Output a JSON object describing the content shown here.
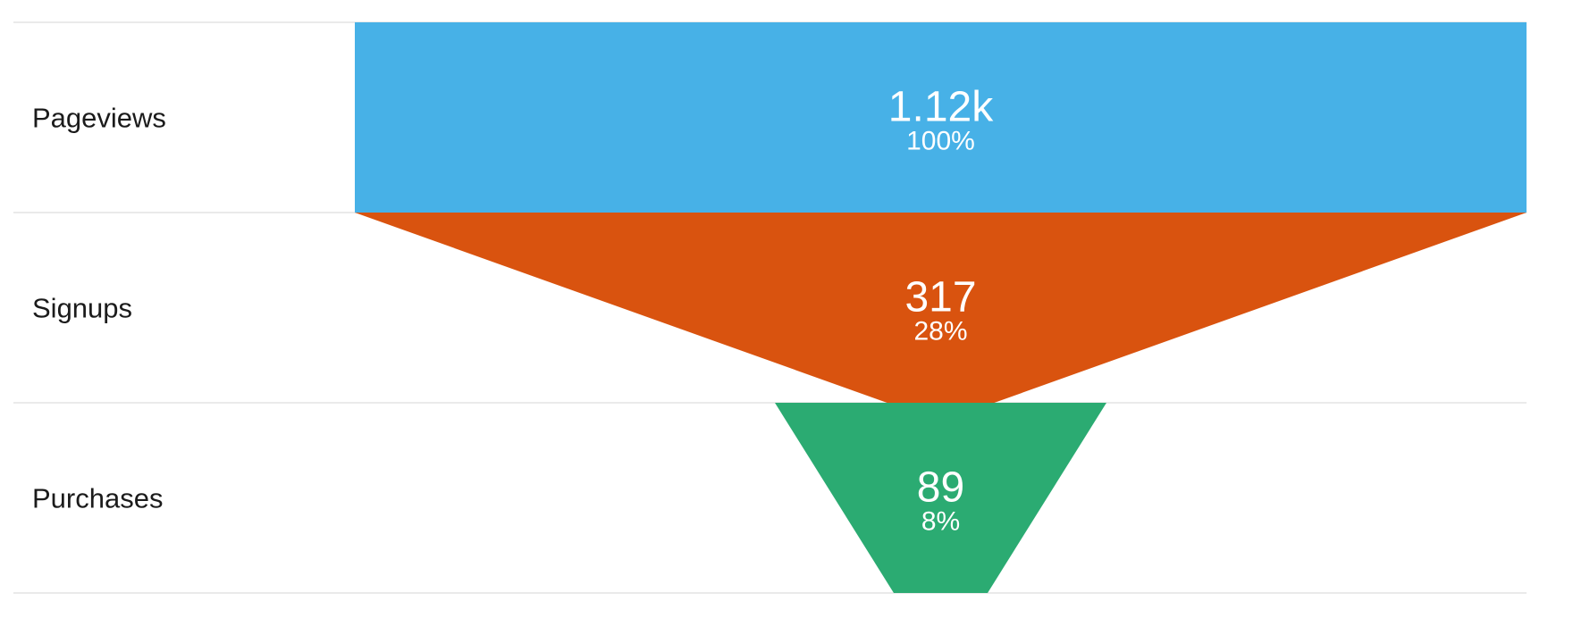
{
  "chart_data": {
    "type": "funnel",
    "title": "",
    "categories": [
      "Pageviews",
      "Signups",
      "Purchases"
    ],
    "values": [
      1120,
      317,
      89
    ],
    "value_labels": [
      "1.12k",
      "317",
      "89"
    ],
    "percent_labels": [
      "100%",
      "28%",
      "8%"
    ],
    "percentages": [
      100,
      28,
      8
    ],
    "colors": [
      "#47b1e7",
      "#d9530f",
      "#2bab72"
    ],
    "grid": true,
    "legend": "none"
  }
}
